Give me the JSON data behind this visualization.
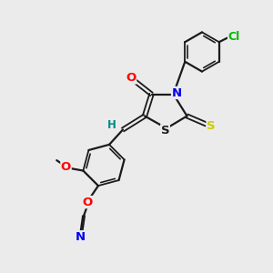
{
  "background_color": "#ebebeb",
  "bond_color": "#1a1a1a",
  "atom_colors": {
    "O": "#ff0000",
    "N": "#0000ee",
    "S_thioxo": "#cccc00",
    "S_ring": "#1a1a1a",
    "Cl": "#00bb00",
    "H": "#008888",
    "C": "#1a1a1a"
  },
  "lw_single": 1.6,
  "lw_double": 1.3,
  "fontsize": 9.5
}
